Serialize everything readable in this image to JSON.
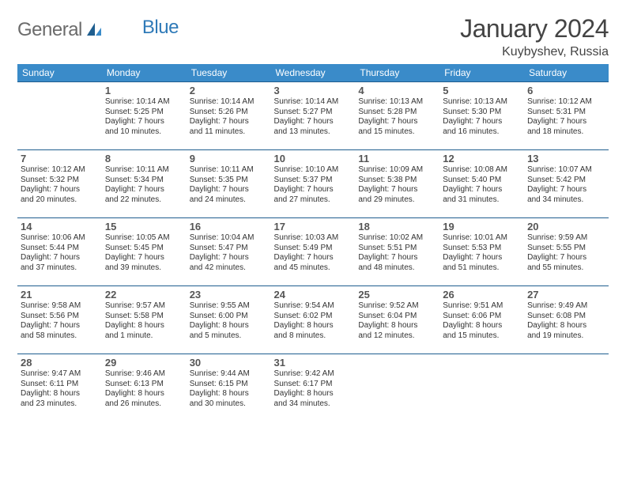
{
  "logo": {
    "general": "General",
    "blue": "Blue"
  },
  "title": {
    "month": "January 2024",
    "location": "Kuybyshev, Russia"
  },
  "colors": {
    "header_bg": "#3a8bc9",
    "header_fg": "#ffffff",
    "row_border": "#1f5e8f",
    "text": "#333333",
    "logo_gray": "#6b6b6b",
    "logo_blue": "#2f7ab8"
  },
  "weekdays": [
    "Sunday",
    "Monday",
    "Tuesday",
    "Wednesday",
    "Thursday",
    "Friday",
    "Saturday"
  ],
  "weeks": [
    [
      {
        "num": "",
        "sunrise": "",
        "sunset": "",
        "daylight1": "",
        "daylight2": ""
      },
      {
        "num": "1",
        "sunrise": "Sunrise: 10:14 AM",
        "sunset": "Sunset: 5:25 PM",
        "daylight1": "Daylight: 7 hours",
        "daylight2": "and 10 minutes."
      },
      {
        "num": "2",
        "sunrise": "Sunrise: 10:14 AM",
        "sunset": "Sunset: 5:26 PM",
        "daylight1": "Daylight: 7 hours",
        "daylight2": "and 11 minutes."
      },
      {
        "num": "3",
        "sunrise": "Sunrise: 10:14 AM",
        "sunset": "Sunset: 5:27 PM",
        "daylight1": "Daylight: 7 hours",
        "daylight2": "and 13 minutes."
      },
      {
        "num": "4",
        "sunrise": "Sunrise: 10:13 AM",
        "sunset": "Sunset: 5:28 PM",
        "daylight1": "Daylight: 7 hours",
        "daylight2": "and 15 minutes."
      },
      {
        "num": "5",
        "sunrise": "Sunrise: 10:13 AM",
        "sunset": "Sunset: 5:30 PM",
        "daylight1": "Daylight: 7 hours",
        "daylight2": "and 16 minutes."
      },
      {
        "num": "6",
        "sunrise": "Sunrise: 10:12 AM",
        "sunset": "Sunset: 5:31 PM",
        "daylight1": "Daylight: 7 hours",
        "daylight2": "and 18 minutes."
      }
    ],
    [
      {
        "num": "7",
        "sunrise": "Sunrise: 10:12 AM",
        "sunset": "Sunset: 5:32 PM",
        "daylight1": "Daylight: 7 hours",
        "daylight2": "and 20 minutes."
      },
      {
        "num": "8",
        "sunrise": "Sunrise: 10:11 AM",
        "sunset": "Sunset: 5:34 PM",
        "daylight1": "Daylight: 7 hours",
        "daylight2": "and 22 minutes."
      },
      {
        "num": "9",
        "sunrise": "Sunrise: 10:11 AM",
        "sunset": "Sunset: 5:35 PM",
        "daylight1": "Daylight: 7 hours",
        "daylight2": "and 24 minutes."
      },
      {
        "num": "10",
        "sunrise": "Sunrise: 10:10 AM",
        "sunset": "Sunset: 5:37 PM",
        "daylight1": "Daylight: 7 hours",
        "daylight2": "and 27 minutes."
      },
      {
        "num": "11",
        "sunrise": "Sunrise: 10:09 AM",
        "sunset": "Sunset: 5:38 PM",
        "daylight1": "Daylight: 7 hours",
        "daylight2": "and 29 minutes."
      },
      {
        "num": "12",
        "sunrise": "Sunrise: 10:08 AM",
        "sunset": "Sunset: 5:40 PM",
        "daylight1": "Daylight: 7 hours",
        "daylight2": "and 31 minutes."
      },
      {
        "num": "13",
        "sunrise": "Sunrise: 10:07 AM",
        "sunset": "Sunset: 5:42 PM",
        "daylight1": "Daylight: 7 hours",
        "daylight2": "and 34 minutes."
      }
    ],
    [
      {
        "num": "14",
        "sunrise": "Sunrise: 10:06 AM",
        "sunset": "Sunset: 5:44 PM",
        "daylight1": "Daylight: 7 hours",
        "daylight2": "and 37 minutes."
      },
      {
        "num": "15",
        "sunrise": "Sunrise: 10:05 AM",
        "sunset": "Sunset: 5:45 PM",
        "daylight1": "Daylight: 7 hours",
        "daylight2": "and 39 minutes."
      },
      {
        "num": "16",
        "sunrise": "Sunrise: 10:04 AM",
        "sunset": "Sunset: 5:47 PM",
        "daylight1": "Daylight: 7 hours",
        "daylight2": "and 42 minutes."
      },
      {
        "num": "17",
        "sunrise": "Sunrise: 10:03 AM",
        "sunset": "Sunset: 5:49 PM",
        "daylight1": "Daylight: 7 hours",
        "daylight2": "and 45 minutes."
      },
      {
        "num": "18",
        "sunrise": "Sunrise: 10:02 AM",
        "sunset": "Sunset: 5:51 PM",
        "daylight1": "Daylight: 7 hours",
        "daylight2": "and 48 minutes."
      },
      {
        "num": "19",
        "sunrise": "Sunrise: 10:01 AM",
        "sunset": "Sunset: 5:53 PM",
        "daylight1": "Daylight: 7 hours",
        "daylight2": "and 51 minutes."
      },
      {
        "num": "20",
        "sunrise": "Sunrise: 9:59 AM",
        "sunset": "Sunset: 5:55 PM",
        "daylight1": "Daylight: 7 hours",
        "daylight2": "and 55 minutes."
      }
    ],
    [
      {
        "num": "21",
        "sunrise": "Sunrise: 9:58 AM",
        "sunset": "Sunset: 5:56 PM",
        "daylight1": "Daylight: 7 hours",
        "daylight2": "and 58 minutes."
      },
      {
        "num": "22",
        "sunrise": "Sunrise: 9:57 AM",
        "sunset": "Sunset: 5:58 PM",
        "daylight1": "Daylight: 8 hours",
        "daylight2": "and 1 minute."
      },
      {
        "num": "23",
        "sunrise": "Sunrise: 9:55 AM",
        "sunset": "Sunset: 6:00 PM",
        "daylight1": "Daylight: 8 hours",
        "daylight2": "and 5 minutes."
      },
      {
        "num": "24",
        "sunrise": "Sunrise: 9:54 AM",
        "sunset": "Sunset: 6:02 PM",
        "daylight1": "Daylight: 8 hours",
        "daylight2": "and 8 minutes."
      },
      {
        "num": "25",
        "sunrise": "Sunrise: 9:52 AM",
        "sunset": "Sunset: 6:04 PM",
        "daylight1": "Daylight: 8 hours",
        "daylight2": "and 12 minutes."
      },
      {
        "num": "26",
        "sunrise": "Sunrise: 9:51 AM",
        "sunset": "Sunset: 6:06 PM",
        "daylight1": "Daylight: 8 hours",
        "daylight2": "and 15 minutes."
      },
      {
        "num": "27",
        "sunrise": "Sunrise: 9:49 AM",
        "sunset": "Sunset: 6:08 PM",
        "daylight1": "Daylight: 8 hours",
        "daylight2": "and 19 minutes."
      }
    ],
    [
      {
        "num": "28",
        "sunrise": "Sunrise: 9:47 AM",
        "sunset": "Sunset: 6:11 PM",
        "daylight1": "Daylight: 8 hours",
        "daylight2": "and 23 minutes."
      },
      {
        "num": "29",
        "sunrise": "Sunrise: 9:46 AM",
        "sunset": "Sunset: 6:13 PM",
        "daylight1": "Daylight: 8 hours",
        "daylight2": "and 26 minutes."
      },
      {
        "num": "30",
        "sunrise": "Sunrise: 9:44 AM",
        "sunset": "Sunset: 6:15 PM",
        "daylight1": "Daylight: 8 hours",
        "daylight2": "and 30 minutes."
      },
      {
        "num": "31",
        "sunrise": "Sunrise: 9:42 AM",
        "sunset": "Sunset: 6:17 PM",
        "daylight1": "Daylight: 8 hours",
        "daylight2": "and 34 minutes."
      },
      {
        "num": "",
        "sunrise": "",
        "sunset": "",
        "daylight1": "",
        "daylight2": ""
      },
      {
        "num": "",
        "sunrise": "",
        "sunset": "",
        "daylight1": "",
        "daylight2": ""
      },
      {
        "num": "",
        "sunrise": "",
        "sunset": "",
        "daylight1": "",
        "daylight2": ""
      }
    ]
  ]
}
